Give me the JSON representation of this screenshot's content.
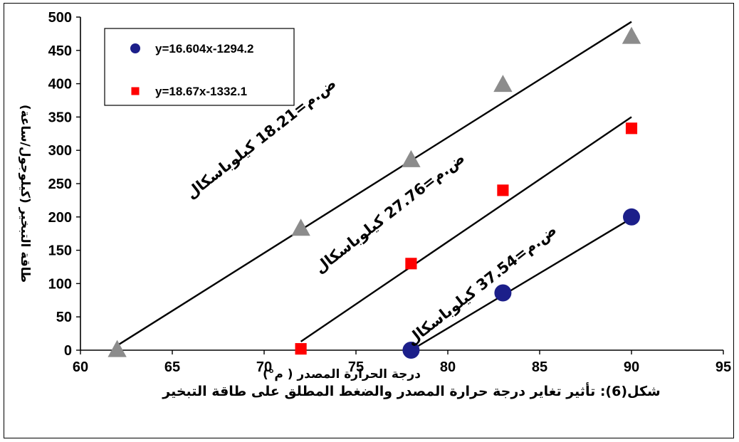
{
  "chart_data": {
    "type": "scatter",
    "xlim": [
      60,
      95
    ],
    "ylim": [
      0,
      500
    ],
    "x_ticks": [
      60,
      65,
      70,
      75,
      80,
      85,
      90,
      95
    ],
    "y_ticks": [
      0,
      50,
      100,
      150,
      200,
      250,
      300,
      350,
      400,
      450,
      500
    ],
    "xlabel": "درجة الحرارة المصدر ( م°)",
    "ylabel": "طاقة التبخير (كيلوجول/ساعة)",
    "caption": "شكل(6): تأثير تغاير درجة حرارة المصدر والضغط المطلق على طاقة التبخير",
    "grid": false,
    "legend_position": "top-left",
    "legend": [
      {
        "label": "y=16.604x-1294.2",
        "marker": "circle",
        "color": "#1c1f8a"
      },
      {
        "label": "y=18.67x-1332.1",
        "marker": "square",
        "color": "#ff0000"
      }
    ],
    "series": [
      {
        "marker": "triangle",
        "color": "#8c8c8c",
        "x": [
          62,
          72,
          78,
          83,
          90
        ],
        "y": [
          0,
          182,
          285,
          398,
          470
        ],
        "trend": [
          [
            62,
            7
          ],
          [
            90,
            493
          ]
        ]
      },
      {
        "marker": "square",
        "color": "#ff0000",
        "x": [
          72,
          78,
          83,
          90
        ],
        "y": [
          2,
          130,
          240,
          333
        ],
        "trend": [
          [
            72,
            13
          ],
          [
            90,
            350
          ]
        ]
      },
      {
        "marker": "circle",
        "color": "#1c1f8a",
        "x": [
          78,
          83,
          90
        ],
        "y": [
          0,
          86,
          200
        ],
        "trend": [
          [
            78,
            0
          ],
          [
            90,
            198
          ]
        ]
      }
    ],
    "annotations": [
      {
        "text": "ض.م=18.21 كيلوباسكال",
        "at": [
          70,
          312
        ],
        "angle": -38
      },
      {
        "text": "ض.م=27.76 كيلوباسكال",
        "at": [
          77,
          200
        ],
        "angle": -38
      },
      {
        "text": "ض.م=37.54 كيلوباسكال",
        "at": [
          82,
          92
        ],
        "angle": -38
      }
    ]
  }
}
